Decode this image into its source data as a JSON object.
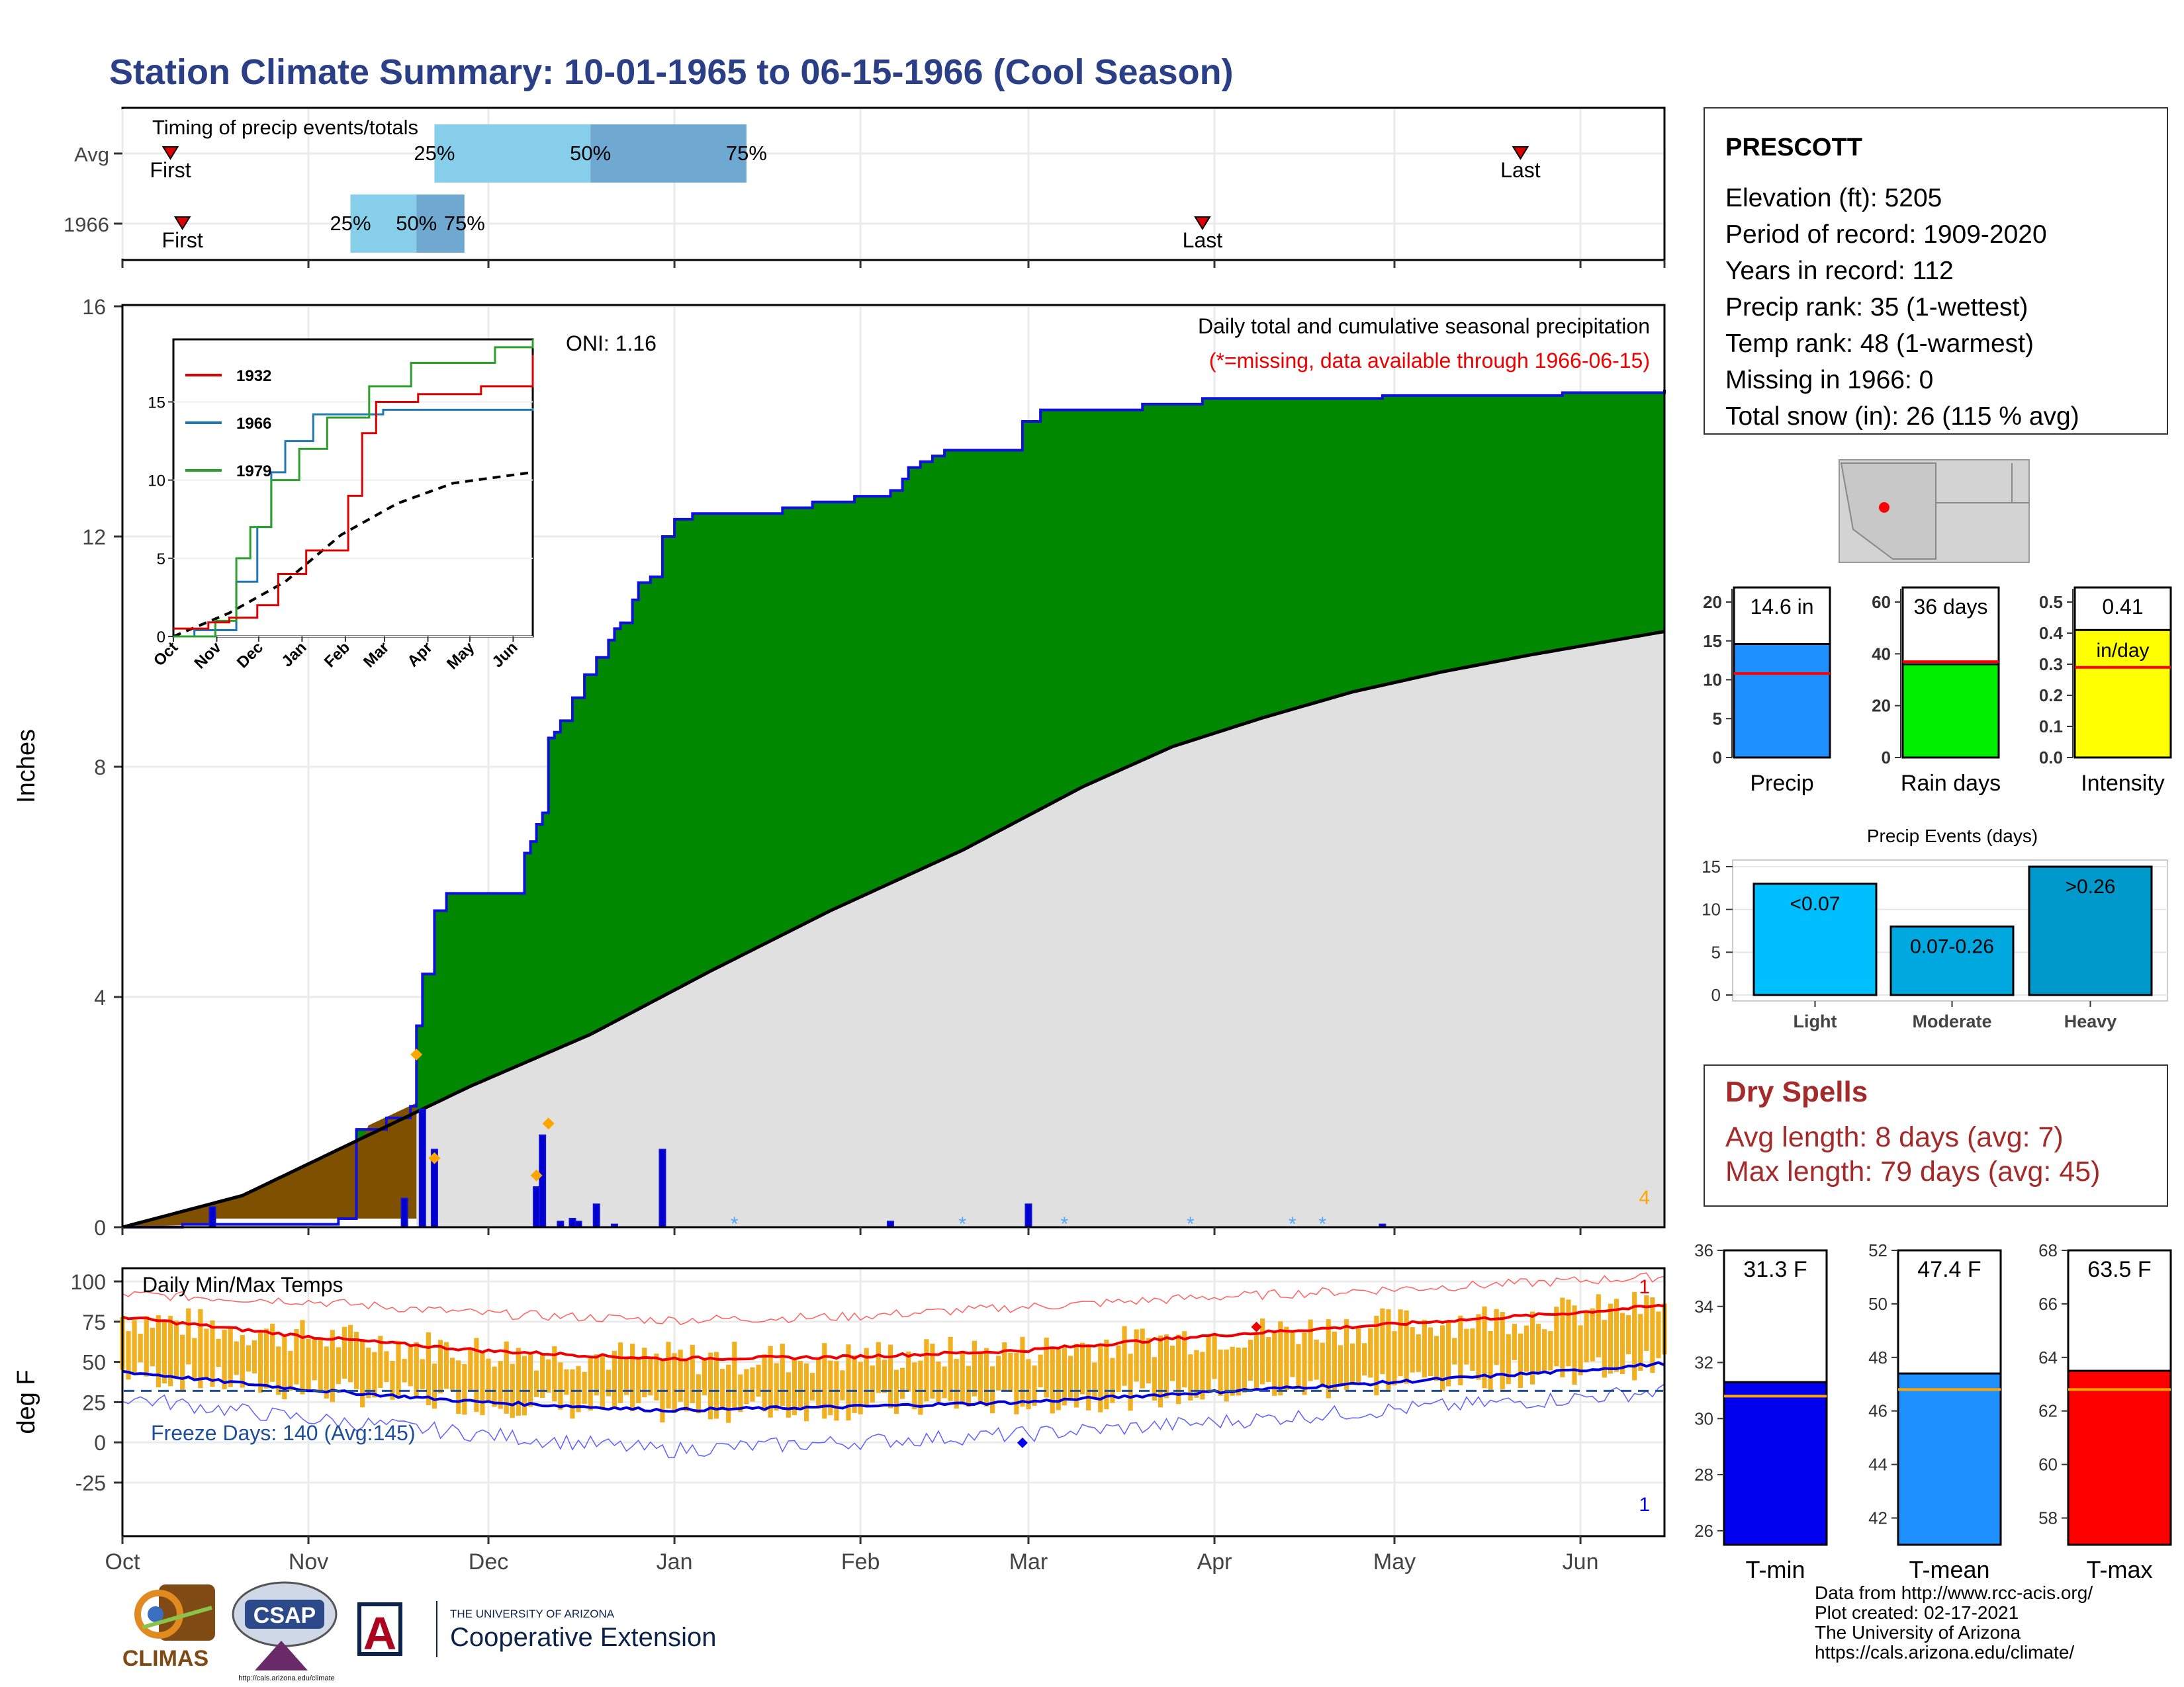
{
  "title": "Station Climate Summary: 10-01-1965 to 06-15-1966 (Cool Season)",
  "colors": {
    "title": "#2a3f85",
    "green": "#008800",
    "brown": "#7f5000",
    "grey": "#e0e0e0",
    "blue_line": "#1010e0",
    "light_blue": "#87ceeb",
    "mid_blue": "#6fa8d0",
    "temp_bar": "#f0b020",
    "red": "#e00000",
    "dry": "#a52a2a",
    "orange": "#ffa500"
  },
  "months": [
    "Oct",
    "Nov",
    "Dec",
    "Jan",
    "Feb",
    "Mar",
    "Apr",
    "May",
    "Jun"
  ],
  "timing": {
    "title": "Timing of precip events/totals",
    "rows": [
      {
        "label": "Avg",
        "first": "First",
        "last": "Last",
        "first_day": 8,
        "last_day": 233,
        "p25": 52,
        "p50": 78,
        "p75": 104
      },
      {
        "label": "1966",
        "first": "First",
        "last": "Last",
        "first_day": 10,
        "last_day": 180,
        "p25": 38,
        "p50": 49,
        "p75": 57
      }
    ],
    "pct_labels": [
      "25%",
      "50%",
      "75%"
    ]
  },
  "precip": {
    "ylabel": "Inches",
    "yticks": [
      0,
      4,
      8,
      12,
      16
    ],
    "subtitle": "Daily total and cumulative seasonal precipitation",
    "missing_note": "(*=missing, data available through 1966-06-15)",
    "oni": "ONI: 1.16",
    "corner_count": "4",
    "cumulative": [
      [
        0,
        0
      ],
      [
        10,
        0.05
      ],
      [
        36,
        0.15
      ],
      [
        39,
        1.7
      ],
      [
        44,
        1.9
      ],
      [
        48,
        2.1
      ],
      [
        49,
        3.5
      ],
      [
        50,
        4.4
      ],
      [
        52,
        5.5
      ],
      [
        54,
        5.8
      ],
      [
        66,
        5.8
      ],
      [
        67,
        6.5
      ],
      [
        68,
        6.7
      ],
      [
        69,
        7.0
      ],
      [
        70,
        7.2
      ],
      [
        71,
        8.5
      ],
      [
        72,
        8.6
      ],
      [
        73,
        8.8
      ],
      [
        75,
        9.2
      ],
      [
        77,
        9.6
      ],
      [
        79,
        9.9
      ],
      [
        81,
        10.2
      ],
      [
        82,
        10.4
      ],
      [
        83,
        10.5
      ],
      [
        85,
        10.9
      ],
      [
        86,
        11.2
      ],
      [
        88,
        11.3
      ],
      [
        90,
        12.0
      ],
      [
        92,
        12.3
      ],
      [
        95,
        12.4
      ],
      [
        96,
        12.4
      ],
      [
        108,
        12.4
      ],
      [
        110,
        12.5
      ],
      [
        115,
        12.6
      ],
      [
        122,
        12.7
      ],
      [
        128,
        12.8
      ],
      [
        130,
        13.0
      ],
      [
        131,
        13.2
      ],
      [
        133,
        13.3
      ],
      [
        135,
        13.4
      ],
      [
        137,
        13.5
      ],
      [
        142,
        13.5
      ],
      [
        149,
        13.5
      ],
      [
        150,
        14.0
      ],
      [
        153,
        14.2
      ],
      [
        170,
        14.3
      ],
      [
        180,
        14.4
      ],
      [
        210,
        14.45
      ],
      [
        240,
        14.5
      ],
      [
        257,
        14.55
      ]
    ],
    "average": [
      [
        0,
        0
      ],
      [
        20,
        0.55
      ],
      [
        40,
        1.55
      ],
      [
        58,
        2.45
      ],
      [
        78,
        3.35
      ],
      [
        98,
        4.45
      ],
      [
        118,
        5.5
      ],
      [
        140,
        6.55
      ],
      [
        160,
        7.65
      ],
      [
        175,
        8.35
      ],
      [
        190,
        8.85
      ],
      [
        205,
        9.3
      ],
      [
        220,
        9.65
      ],
      [
        235,
        9.95
      ],
      [
        257,
        10.35
      ]
    ],
    "daily": [
      [
        15,
        0.35
      ],
      [
        47,
        0.5
      ],
      [
        50,
        2.05
      ],
      [
        52,
        1.35
      ],
      [
        69,
        0.7
      ],
      [
        70,
        1.6
      ],
      [
        73,
        0.1
      ],
      [
        75,
        0.15
      ],
      [
        76,
        0.1
      ],
      [
        79,
        0.4
      ],
      [
        82,
        0.05
      ],
      [
        90,
        1.35
      ],
      [
        128,
        0.1
      ],
      [
        151,
        0.4
      ],
      [
        210,
        0.05
      ]
    ],
    "markers": [
      [
        49,
        3.0
      ],
      [
        52,
        1.2
      ],
      [
        69,
        0.9
      ],
      [
        71,
        1.8
      ]
    ]
  },
  "inset": {
    "series": [
      {
        "name": "1932",
        "color": "#e00000"
      },
      {
        "name": "1966",
        "color": "#1f77b4"
      },
      {
        "name": "1979",
        "color": "#2ca02c"
      }
    ],
    "yticks": [
      0,
      5,
      10,
      15
    ],
    "months": [
      "Oct",
      "Nov",
      "Dec",
      "Jan",
      "Feb",
      "Mar",
      "Apr",
      "May",
      "Jun"
    ],
    "s1932": [
      [
        0,
        0.5
      ],
      [
        25,
        0.9
      ],
      [
        40,
        1.2
      ],
      [
        60,
        2.0
      ],
      [
        75,
        4.0
      ],
      [
        95,
        5.5
      ],
      [
        125,
        9.0
      ],
      [
        135,
        13.0
      ],
      [
        145,
        15.0
      ],
      [
        175,
        15.5
      ],
      [
        220,
        16.0
      ],
      [
        257,
        18.0
      ]
    ],
    "s1966": [
      [
        0,
        0
      ],
      [
        15,
        0.4
      ],
      [
        45,
        3.5
      ],
      [
        60,
        7.0
      ],
      [
        70,
        10.5
      ],
      [
        80,
        12.5
      ],
      [
        100,
        14.2
      ],
      [
        150,
        14.5
      ],
      [
        257,
        14.6
      ]
    ],
    "s1979": [
      [
        0,
        0
      ],
      [
        30,
        1.0
      ],
      [
        45,
        5.0
      ],
      [
        55,
        7.0
      ],
      [
        70,
        10.0
      ],
      [
        90,
        12.0
      ],
      [
        110,
        14.0
      ],
      [
        140,
        16.0
      ],
      [
        170,
        17.5
      ],
      [
        230,
        18.5
      ],
      [
        257,
        19.0
      ]
    ],
    "savg": [
      [
        0,
        0
      ],
      [
        40,
        1.5
      ],
      [
        80,
        3.5
      ],
      [
        120,
        6.5
      ],
      [
        160,
        8.5
      ],
      [
        200,
        9.8
      ],
      [
        257,
        10.5
      ]
    ]
  },
  "temps": {
    "title": "Daily Min/Max Temps",
    "ylabel": "deg F",
    "yticks": [
      -25,
      0,
      25,
      50,
      75,
      100
    ],
    "freeze": "Freeze Days: 140 (Avg:145)",
    "top_count": "1",
    "bottom_count": "1",
    "avg_max": [
      [
        0,
        78
      ],
      [
        30,
        66
      ],
      [
        60,
        57
      ],
      [
        90,
        52
      ],
      [
        120,
        53
      ],
      [
        150,
        57
      ],
      [
        180,
        66
      ],
      [
        210,
        73
      ],
      [
        240,
        80
      ],
      [
        257,
        85
      ]
    ],
    "avg_min": [
      [
        0,
        44
      ],
      [
        30,
        33
      ],
      [
        60,
        25
      ],
      [
        90,
        20
      ],
      [
        120,
        22
      ],
      [
        150,
        25
      ],
      [
        180,
        31
      ],
      [
        210,
        37
      ],
      [
        240,
        44
      ],
      [
        257,
        49
      ]
    ],
    "rec_max": [
      [
        0,
        92
      ],
      [
        30,
        88
      ],
      [
        60,
        80
      ],
      [
        90,
        76
      ],
      [
        120,
        78
      ],
      [
        150,
        84
      ],
      [
        180,
        90
      ],
      [
        210,
        95
      ],
      [
        240,
        100
      ],
      [
        257,
        103
      ]
    ],
    "rec_min": [
      [
        0,
        28
      ],
      [
        30,
        15
      ],
      [
        60,
        5
      ],
      [
        90,
        -5
      ],
      [
        120,
        0
      ],
      [
        150,
        5
      ],
      [
        180,
        12
      ],
      [
        210,
        20
      ],
      [
        240,
        27
      ],
      [
        257,
        32
      ]
    ]
  },
  "station": {
    "name": "PRESCOTT",
    "lines": [
      "Elevation (ft): 5205",
      "Period of record: 1909-2020",
      "Years in record: 112",
      "Precip rank: 35 (1-wettest)",
      "Temp rank: 48 (1-warmest)",
      "Missing in 1966: 0",
      "Total snow (in): 26 (115 % avg)"
    ]
  },
  "mini_bars": [
    {
      "label": "Precip",
      "value": 14.6,
      "value_text": "14.6 in",
      "avg": 10.8,
      "yticks": [
        "0",
        "5",
        "10",
        "15",
        "20"
      ],
      "ymax": 20,
      "color": "#1e90ff"
    },
    {
      "label": "Rain days",
      "value": 36,
      "value_text": "36 days",
      "avg": 37,
      "yticks": [
        "0",
        "20",
        "40",
        "60"
      ],
      "ymax": 60,
      "color": "#00ee00"
    },
    {
      "label": "Intensity",
      "value": 0.41,
      "value_text": "0.41",
      "value_unit": "in/day",
      "avg": 0.29,
      "yticks": [
        "0.0",
        "0.1",
        "0.2",
        "0.3",
        "0.4",
        "0.5"
      ],
      "ymax": 0.5,
      "color": "#ffff00"
    }
  ],
  "events": {
    "title": "Precip Events (days)",
    "yticks": [
      0,
      5,
      10,
      15
    ],
    "bars": [
      {
        "label": "Light",
        "bin": "<0.07",
        "value": 13,
        "color": "#00bfff"
      },
      {
        "label": "Moderate",
        "bin": "0.07-0.26",
        "value": 8,
        "color": "#00a8e0"
      },
      {
        "label": "Heavy",
        "bin": ">0.26",
        "value": 15,
        "color": "#0099cc"
      }
    ]
  },
  "dry": {
    "title": "Dry Spells",
    "avg": "Avg length: 8 days (avg: 7)",
    "max": "Max length: 79 days (avg: 45)"
  },
  "temp_bars": [
    {
      "label": "T-min",
      "value": 31.3,
      "value_text": "31.3 F",
      "avg": 30.8,
      "ymin": 25.5,
      "ymax": 36,
      "yticks": [
        26,
        28,
        30,
        32,
        34,
        36
      ],
      "color": "#0000ee"
    },
    {
      "label": "T-mean",
      "value": 47.4,
      "value_text": "47.4 F",
      "avg": 46.8,
      "ymin": 41,
      "ymax": 52,
      "yticks": [
        42,
        44,
        46,
        48,
        50,
        52
      ],
      "color": "#1e90ff"
    },
    {
      "label": "T-max",
      "value": 63.5,
      "value_text": "63.5 F",
      "avg": 62.8,
      "ymin": 57,
      "ymax": 68,
      "yticks": [
        58,
        60,
        62,
        64,
        66,
        68
      ],
      "color": "#ff0000"
    }
  ],
  "footer": {
    "credits": [
      "Data from http://www.rcc-acis.org/",
      "Plot created: 02-17-2021",
      "The University of Arizona",
      "https://cals.arizona.edu/climate/"
    ],
    "logo1": "CLIMAS",
    "logo2": "CSAP",
    "logo2_url": "http://cals.arizona.edu/climate",
    "logo3_small": "THE UNIVERSITY OF ARIZONA",
    "logo3_main": "Cooperative Extension",
    "logo3_letter": "A"
  }
}
